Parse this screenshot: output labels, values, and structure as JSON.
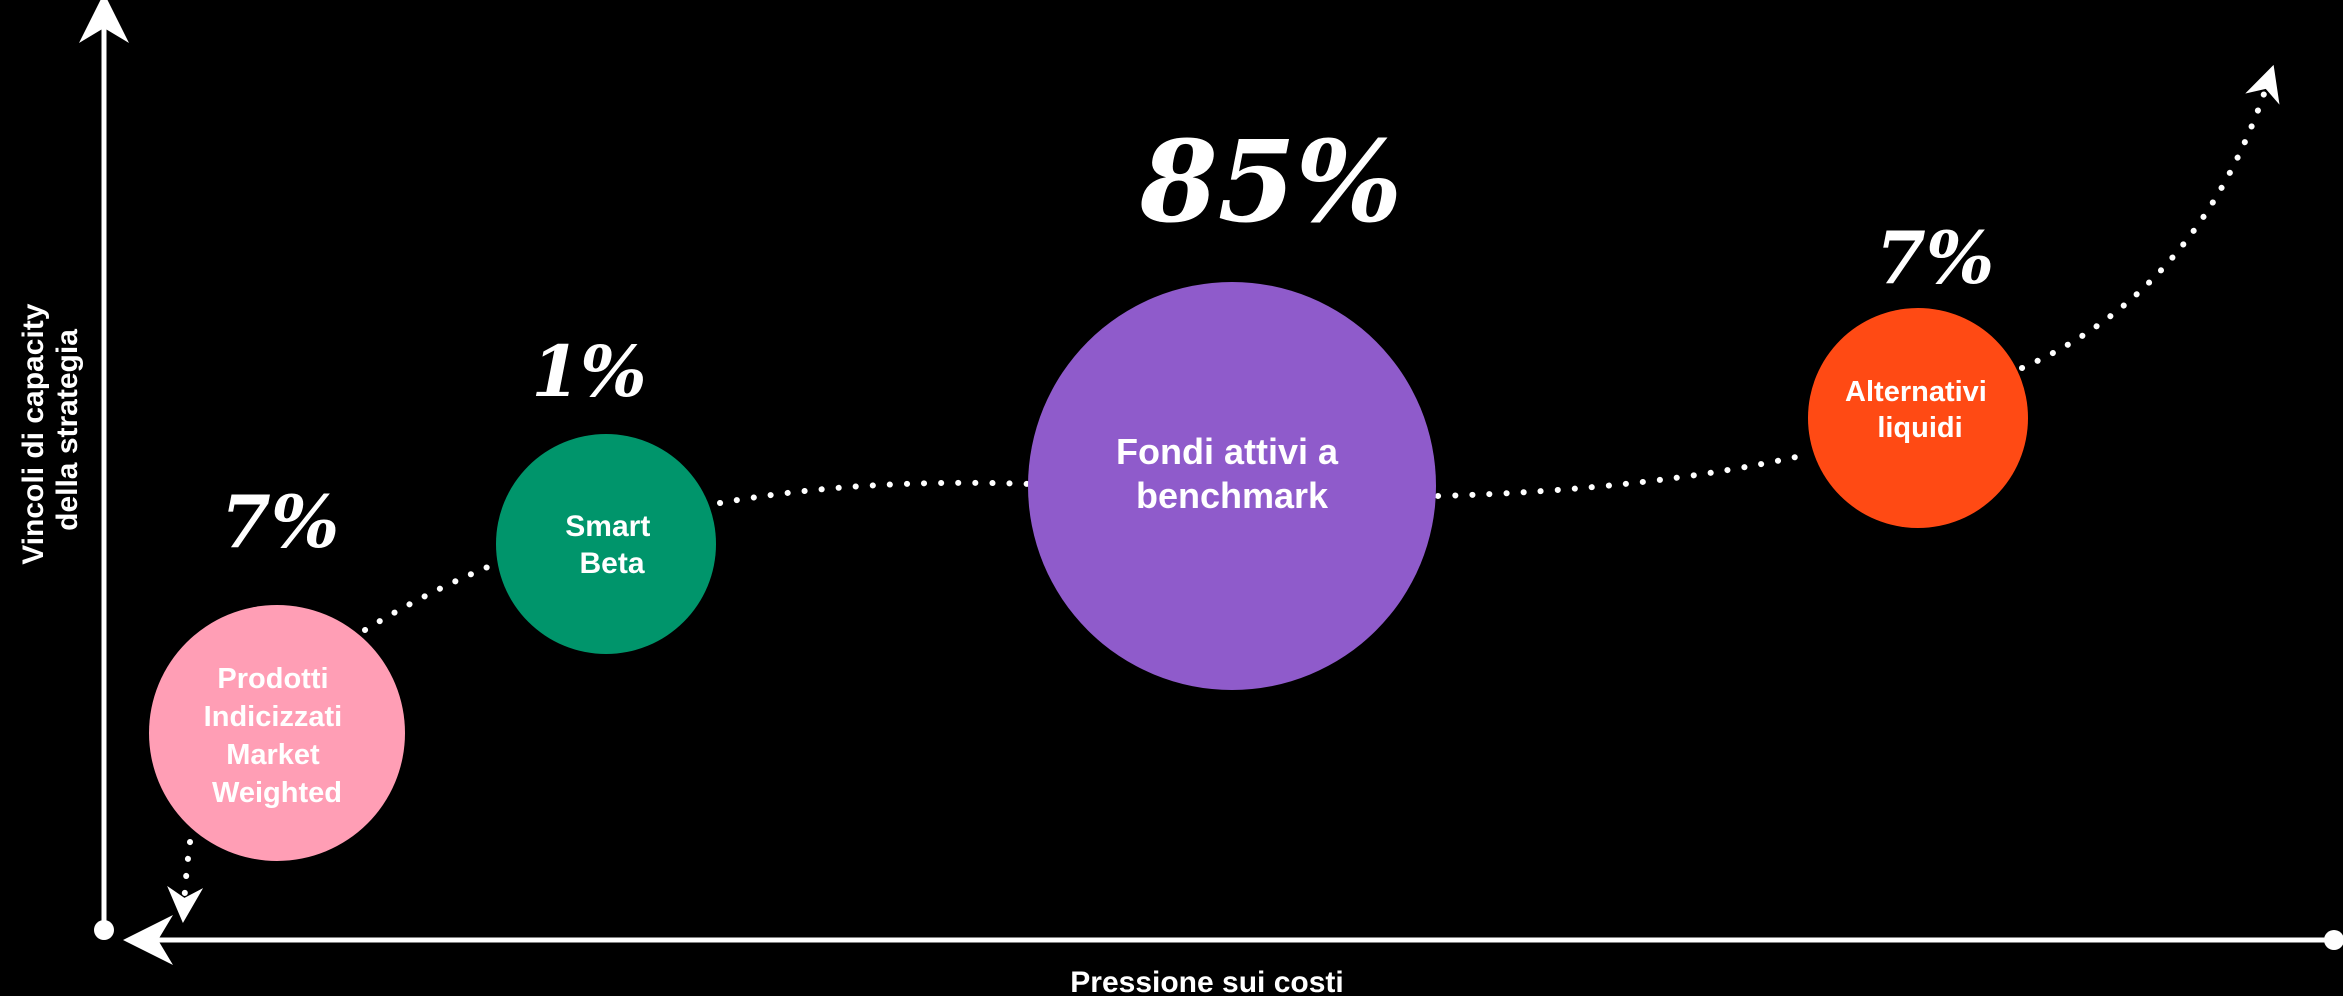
{
  "axes": {
    "y_title_line1": "Vincoli di capacity",
    "y_title_line2": "della strategia",
    "x_title": "Pressione sui costi"
  },
  "bubbles": [
    {
      "id": "market-weighted",
      "label_lines": [
        "Prodotti",
        "Indicizzati",
        "Market",
        "Weighted"
      ],
      "percent": "7%",
      "color": "#FF9EB5"
    },
    {
      "id": "smart-beta",
      "label_lines": [
        "Smart",
        "Beta"
      ],
      "percent": "1%",
      "color": "#00956B"
    },
    {
      "id": "active-benchmark",
      "label_lines": [
        "Fondi attivi a",
        "benchmark"
      ],
      "percent": "85%",
      "color": "#8F5BCB"
    },
    {
      "id": "liquid-alternatives",
      "label_lines": [
        "Alternativi",
        "liquidi"
      ],
      "percent": "7%",
      "color": "#FF4A14"
    }
  ]
}
